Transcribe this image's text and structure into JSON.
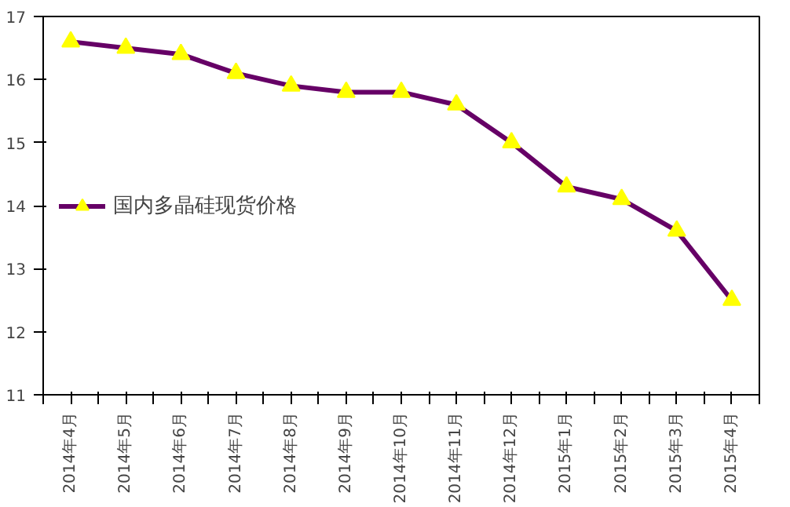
{
  "chart_data": {
    "type": "line",
    "categories": [
      "2014年4月",
      "2014年5月",
      "2014年6月",
      "2014年7月",
      "2014年8月",
      "2014年9月",
      "2014年10月",
      "2014年11月",
      "2014年12月",
      "2015年1月",
      "2015年2月",
      "2015年3月",
      "2015年4月"
    ],
    "series": [
      {
        "name": "国内多晶硅现货价格",
        "color": "#660066",
        "values": [
          16.6,
          16.5,
          16.4,
          16.1,
          15.9,
          15.8,
          15.8,
          15.6,
          15.0,
          14.3,
          14.1,
          13.6,
          12.5
        ]
      }
    ],
    "ylim": [
      11,
      17
    ],
    "yticks": [
      11,
      12,
      13,
      14,
      15,
      16,
      17
    ],
    "grid": false,
    "legend": "left",
    "marker": "triangle",
    "line_style": "solid"
  }
}
